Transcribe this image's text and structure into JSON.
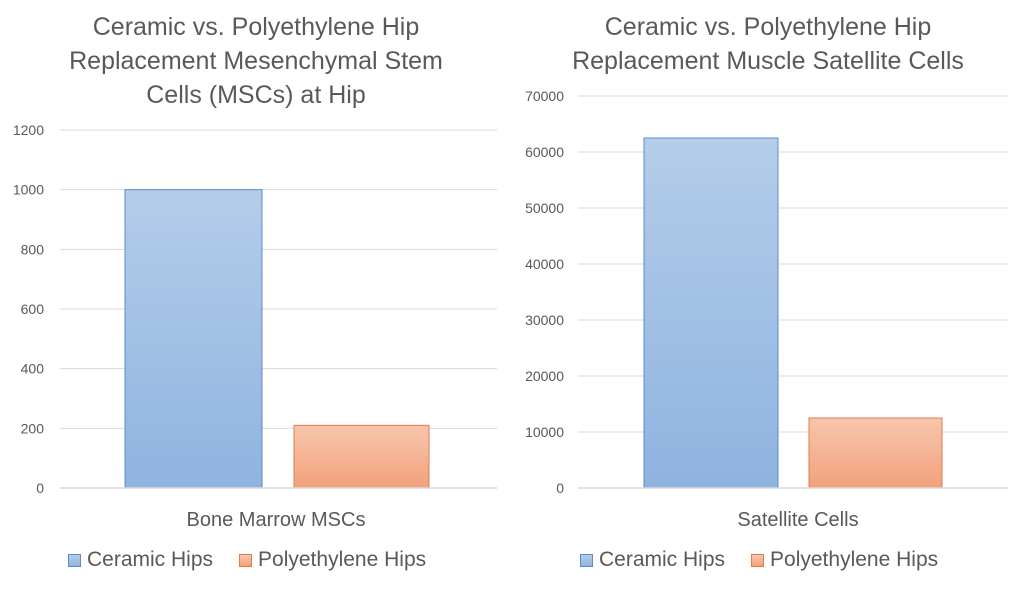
{
  "chart_data": [
    {
      "type": "bar",
      "title_lines": [
        "Ceramic vs. Polyethylene Hip",
        "Replacement Mesenchymal Stem",
        "Cells (MSCs) at Hip"
      ],
      "categories": [
        "Bone Marrow MSCs"
      ],
      "series": [
        {
          "name": "Ceramic Hips",
          "values": [
            1000
          ]
        },
        {
          "name": "Polyethylene Hips",
          "values": [
            210
          ]
        }
      ],
      "ylim": [
        0,
        1200
      ],
      "yticks": [
        0,
        200,
        400,
        600,
        800,
        1000,
        1200
      ],
      "ytick_labels": [
        "0",
        "200",
        "400",
        "600",
        "800",
        "1000",
        "1200"
      ],
      "grid": true,
      "legend_position": "bottom"
    },
    {
      "type": "bar",
      "title_lines": [
        "Ceramic vs. Polyethylene Hip",
        "Replacement Muscle Satellite Cells"
      ],
      "categories": [
        "Satellite Cells"
      ],
      "series": [
        {
          "name": "Ceramic Hips",
          "values": [
            62500
          ]
        },
        {
          "name": "Polyethylene Hips",
          "values": [
            12500
          ]
        }
      ],
      "ylim": [
        0,
        70000
      ],
      "yticks": [
        0,
        10000,
        20000,
        30000,
        40000,
        50000,
        60000,
        70000
      ],
      "ytick_labels": [
        "0",
        "10000",
        "20000",
        "30000",
        "40000",
        "50000",
        "60000",
        "70000"
      ],
      "grid": true,
      "legend_position": "bottom"
    }
  ],
  "colors": {
    "ceramic_top": "#b4cde9",
    "ceramic_bottom": "#8fb3e0",
    "ceramic_edge": "#5b8cc6",
    "poly_top": "#f7c6ad",
    "poly_bottom": "#f2a17c",
    "poly_edge": "#e07b4c",
    "grid": "#d9d9d9",
    "text": "#595959"
  }
}
